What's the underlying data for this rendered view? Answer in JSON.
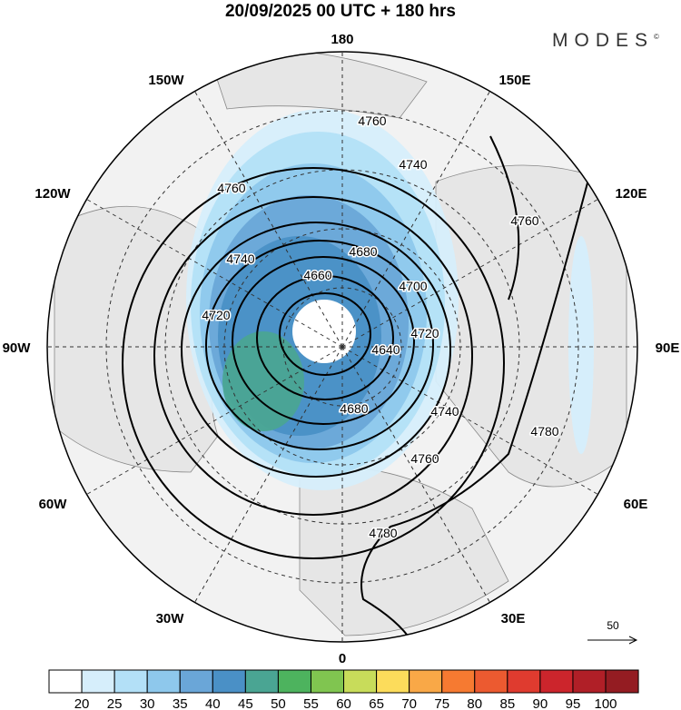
{
  "title": "20/09/2025  00 UTC  + 180 hrs",
  "logo": "MODES",
  "longitude_labels": [
    "180",
    "150E",
    "120E",
    "90E",
    "60E",
    "30E",
    "0",
    "30W",
    "60W",
    "90W",
    "120W",
    "150W"
  ],
  "contours": {
    "levels": [
      4640,
      4660,
      4680,
      4700,
      4720,
      4740,
      4760,
      4780
    ],
    "labels": [
      "4760",
      "4740",
      "4760",
      "4740",
      "4720",
      "4680",
      "4660",
      "4700",
      "4640",
      "4720",
      "4680",
      "4740",
      "4760",
      "4780",
      "4780",
      "4760"
    ]
  },
  "vector_reference": {
    "value": "50"
  },
  "colorbar": {
    "labels": [
      "20",
      "25",
      "30",
      "35",
      "40",
      "45",
      "50",
      "55",
      "60",
      "65",
      "70",
      "75",
      "80",
      "85",
      "90",
      "95",
      "100"
    ],
    "colors": [
      "#ffffff",
      "#d6eefb",
      "#b3e0f7",
      "#8ec8ec",
      "#6aa6d8",
      "#4a90c6",
      "#4aa593",
      "#4db35e",
      "#80c550",
      "#c8dc5a",
      "#fcdc5b",
      "#f9a847",
      "#f67a31",
      "#ec5a30",
      "#df3b2f",
      "#cc252c",
      "#b01f27",
      "#941c22"
    ]
  }
}
